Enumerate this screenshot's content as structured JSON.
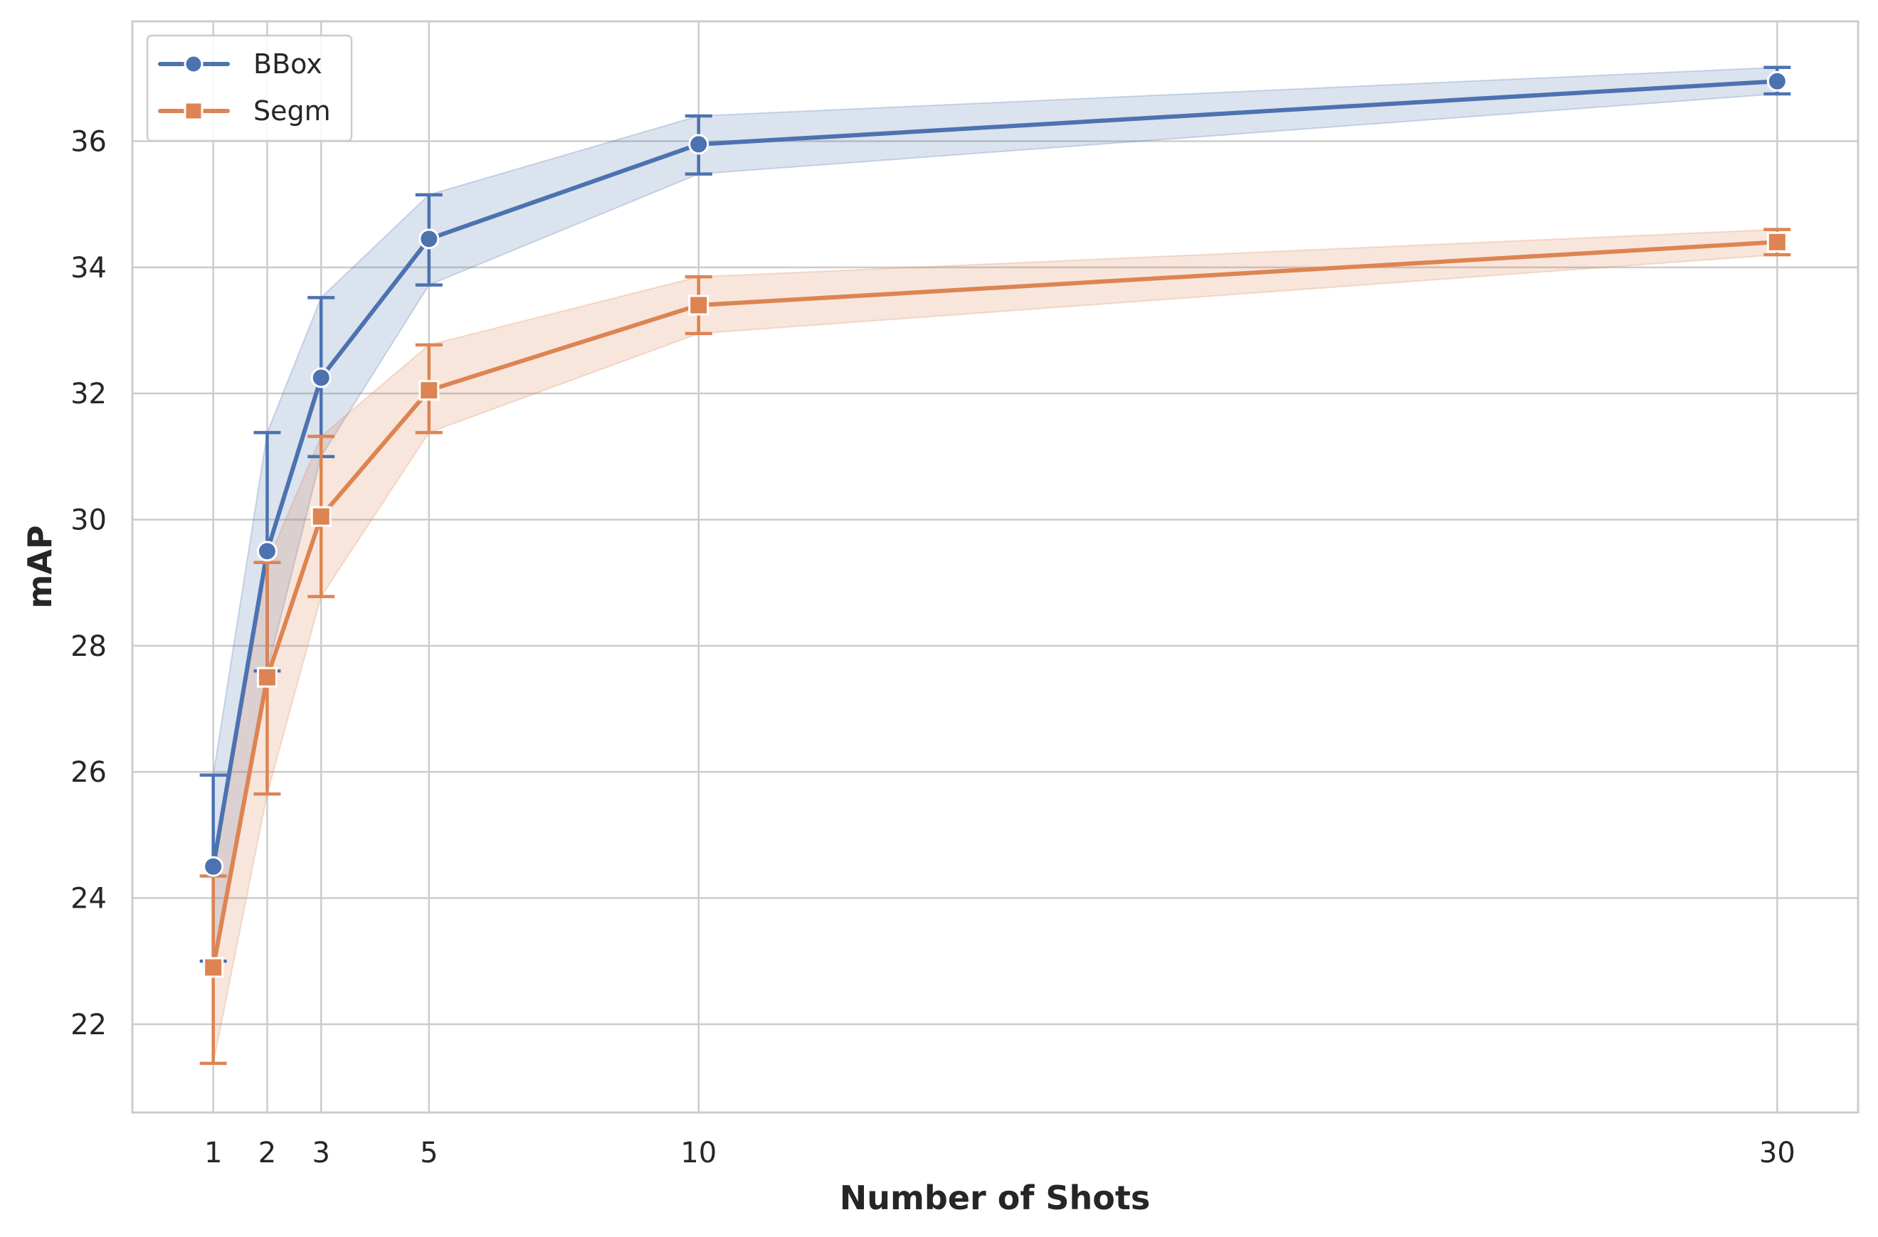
{
  "chart_data": {
    "type": "line",
    "xlabel": "Number of Shots",
    "ylabel": "mAP",
    "x": [
      1,
      2,
      3,
      5,
      10,
      30
    ],
    "x_ticks": [
      "1",
      "2",
      "3",
      "5",
      "10",
      "30"
    ],
    "y_ticks": [
      "22",
      "24",
      "26",
      "28",
      "30",
      "32",
      "34",
      "36"
    ],
    "xlim": [
      -0.5,
      31.5
    ],
    "ylim": [
      20.6,
      37.9
    ],
    "grid": true,
    "legend_position": "top-left",
    "series": [
      {
        "name": "BBox",
        "color": "#4c72b0",
        "marker": "circle",
        "values": [
          24.5,
          29.5,
          32.25,
          34.45,
          35.95,
          36.95
        ],
        "err_low": [
          23.0,
          27.6,
          31.0,
          33.72,
          35.48,
          36.75
        ],
        "err_high": [
          25.95,
          31.38,
          33.52,
          35.15,
          36.4,
          37.17
        ]
      },
      {
        "name": "Segm",
        "color": "#dd8452",
        "marker": "square",
        "values": [
          22.9,
          27.5,
          30.05,
          32.05,
          33.4,
          34.4
        ],
        "err_low": [
          21.38,
          25.65,
          28.78,
          31.38,
          32.95,
          34.2
        ],
        "err_high": [
          24.35,
          29.32,
          31.32,
          32.77,
          33.85,
          34.6
        ]
      }
    ]
  }
}
